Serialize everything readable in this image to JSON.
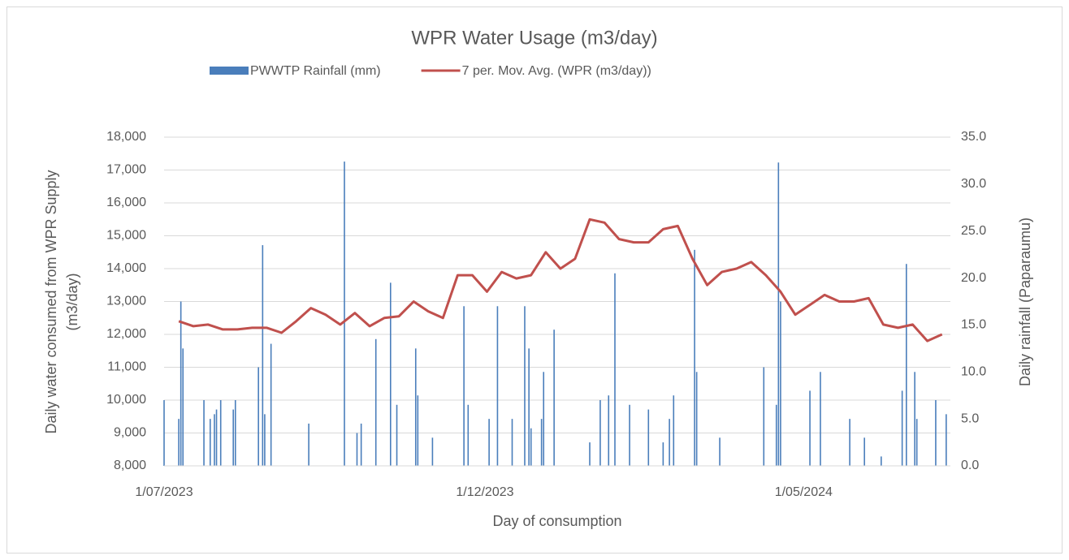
{
  "chart_data": {
    "type": "combo",
    "title": "WPR Water Usage (m3/day)",
    "xlabel": "Day of consumption",
    "ylabel": [
      "Daily water consumed from WPR Supply",
      "(m3/day)"
    ],
    "y2label": "Daily rainfall (Paparaumu)",
    "legend": "top",
    "grid": true,
    "xlim": [
      "1/07/2023",
      "10/07/2024"
    ],
    "xticks": [
      "1/07/2023",
      "1/12/2023",
      "1/05/2024"
    ],
    "ylim": [
      8000,
      18000
    ],
    "yticks": [
      {
        "value": 8000,
        "label": "8,000"
      },
      {
        "value": 9000,
        "label": "9,000"
      },
      {
        "value": 10000,
        "label": "10,000"
      },
      {
        "value": 11000,
        "label": "11,000"
      },
      {
        "value": 12000,
        "label": "12,000"
      },
      {
        "value": 13000,
        "label": "13,000"
      },
      {
        "value": 14000,
        "label": "14,000"
      },
      {
        "value": 15000,
        "label": "15,000"
      },
      {
        "value": 16000,
        "label": "16,000"
      },
      {
        "value": 17000,
        "label": "17,000"
      },
      {
        "value": 18000,
        "label": "18,000"
      }
    ],
    "y2lim": [
      0,
      35
    ],
    "y2ticks": [
      {
        "value": 0,
        "label": "0.0"
      },
      {
        "value": 5,
        "label": "5.0"
      },
      {
        "value": 10,
        "label": "10.0"
      },
      {
        "value": 15,
        "label": "15.0"
      },
      {
        "value": 20,
        "label": "20.0"
      },
      {
        "value": 25,
        "label": "25.0"
      },
      {
        "value": 30,
        "label": "30.0"
      },
      {
        "value": 35,
        "label": "35.0"
      }
    ],
    "series": [
      {
        "name": "PWWTP Rainfall (mm)",
        "type": "bar",
        "axis": "y2",
        "color": "#4a7ebb",
        "x": [
          "1/07/2023",
          "8/07/2023",
          "9/07/2023",
          "10/07/2023",
          "20/07/2023",
          "23/07/2023",
          "25/07/2023",
          "26/07/2023",
          "28/07/2023",
          "3/08/2023",
          "4/08/2023",
          "15/08/2023",
          "17/08/2023",
          "18/08/2023",
          "21/08/2023",
          "8/09/2023",
          "25/09/2023",
          "1/10/2023",
          "3/10/2023",
          "10/10/2023",
          "17/10/2023",
          "20/10/2023",
          "29/10/2023",
          "30/10/2023",
          "6/11/2023",
          "21/11/2023",
          "23/11/2023",
          "3/12/2023",
          "7/12/2023",
          "14/12/2023",
          "20/12/2023",
          "22/12/2023",
          "23/12/2023",
          "28/12/2023",
          "29/12/2023",
          "3/01/2024",
          "20/01/2024",
          "25/01/2024",
          "29/01/2024",
          "1/02/2024",
          "8/02/2024",
          "17/02/2024",
          "24/02/2024",
          "27/02/2024",
          "29/02/2024",
          "10/03/2024",
          "11/03/2024",
          "22/03/2024",
          "12/04/2024",
          "18/04/2024",
          "19/04/2024",
          "20/04/2024",
          "4/05/2024",
          "9/05/2024",
          "23/05/2024",
          "30/05/2024",
          "7/06/2024",
          "17/06/2024",
          "19/06/2024",
          "23/06/2024",
          "24/06/2024",
          "3/07/2024",
          "8/07/2024"
        ],
        "values": [
          7,
          5,
          17.5,
          12.5,
          7,
          5,
          5.5,
          6,
          7,
          6,
          7,
          10.5,
          23.5,
          5.5,
          13,
          4.5,
          32.4,
          3.5,
          4.5,
          13.5,
          19.5,
          6.5,
          12.5,
          7.5,
          3,
          17,
          6.5,
          5,
          17,
          5,
          17,
          12.5,
          4,
          5,
          10,
          14.5,
          2.5,
          7,
          7.5,
          20.5,
          6.5,
          6,
          2.5,
          5,
          7.5,
          23,
          10,
          3,
          10.5,
          6.5,
          32.3,
          17.5,
          8,
          10,
          5,
          3,
          1,
          8,
          21.5,
          10,
          5,
          7,
          5.5
        ]
      },
      {
        "name": "7 per. Mov. Avg. (WPR (m3/day))",
        "type": "line",
        "axis": "y",
        "color": "#c0504d",
        "x": [
          "8/07/2023",
          "15/07/2023",
          "22/07/2023",
          "29/07/2023",
          "5/08/2023",
          "12/08/2023",
          "19/08/2023",
          "26/08/2023",
          "2/09/2023",
          "9/09/2023",
          "16/09/2023",
          "23/09/2023",
          "30/09/2023",
          "7/10/2023",
          "14/10/2023",
          "21/10/2023",
          "28/10/2023",
          "4/11/2023",
          "11/11/2023",
          "18/11/2023",
          "25/11/2023",
          "2/12/2023",
          "9/12/2023",
          "16/12/2023",
          "23/12/2023",
          "30/12/2023",
          "6/01/2024",
          "13/01/2024",
          "20/01/2024",
          "27/01/2024",
          "3/02/2024",
          "10/02/2024",
          "17/02/2024",
          "24/02/2024",
          "2/03/2024",
          "9/03/2024",
          "16/03/2024",
          "23/03/2024",
          "30/03/2024",
          "6/04/2024",
          "13/04/2024",
          "20/04/2024",
          "27/04/2024",
          "4/05/2024",
          "11/05/2024",
          "18/05/2024",
          "25/05/2024",
          "1/06/2024",
          "8/06/2024",
          "15/06/2024",
          "22/06/2024",
          "29/06/2024",
          "6/07/2024"
        ],
        "values": [
          12400,
          12250,
          12300,
          12150,
          12150,
          12200,
          12200,
          12050,
          12400,
          12800,
          12600,
          12300,
          12650,
          12250,
          12500,
          12550,
          13000,
          12700,
          12500,
          13800,
          13800,
          13300,
          13900,
          13700,
          13800,
          14500,
          14000,
          14300,
          15500,
          15400,
          14900,
          14800,
          14800,
          15200,
          15300,
          14300,
          13500,
          13900,
          14000,
          14200,
          13800,
          13300,
          12600,
          12900,
          13200,
          13000,
          13000,
          13100,
          12300,
          12200,
          12300,
          11800,
          12000
        ]
      }
    ]
  }
}
